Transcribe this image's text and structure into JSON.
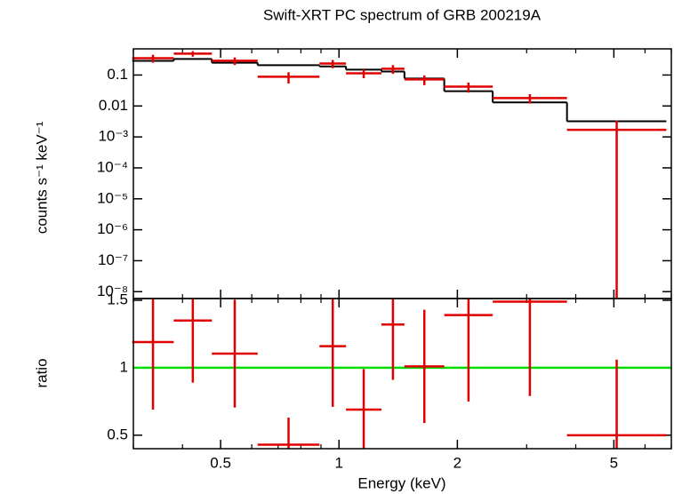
{
  "chart_data": [
    {
      "type": "errorbar",
      "title": "Swift-XRT PC spectrum of GRB 200219A",
      "ylabel": "counts s⁻¹ keV⁻¹",
      "xlog": true,
      "ylog": true,
      "xlim": [
        0.3,
        7
      ],
      "ylim": [
        6e-09,
        0.7
      ],
      "yticks": [
        0.1,
        0.01,
        {
          "value": 0.001,
          "label": "10⁻³"
        },
        {
          "value": 0.0001,
          "label": "10⁻⁴"
        },
        {
          "value": 1e-05,
          "label": "10⁻⁵"
        },
        {
          "value": 1e-06,
          "label": "10⁻⁶"
        },
        {
          "value": 1e-07,
          "label": "10⁻⁷"
        },
        {
          "value": 1e-08,
          "label": "10⁻⁸"
        }
      ],
      "bins": [
        0.298,
        0.38,
        0.475,
        0.621,
        0.892,
        1.042,
        1.282,
        1.467,
        1.852,
        2.46,
        3.8,
        6.8
      ],
      "data": {
        "color": "#e00000",
        "values": [
          0.35,
          0.49,
          0.29,
          0.088,
          0.236,
          0.114,
          0.159,
          0.072,
          0.042,
          0.018,
          0.0017
        ],
        "errors": [
          0.1,
          0.1,
          0.08,
          0.035,
          0.07,
          0.035,
          0.05,
          0.025,
          0.015,
          0.006,
          0.0017
        ]
      },
      "model": {
        "color": "#000000",
        "values": [
          0.287,
          0.33,
          0.25,
          0.207,
          0.19,
          0.149,
          0.13,
          0.077,
          0.03,
          0.013,
          0.0032
        ]
      }
    },
    {
      "type": "errorbar",
      "xlabel": "Energy (keV)",
      "ylabel": "ratio",
      "xlog": true,
      "ylog": false,
      "xlim": [
        0.3,
        7
      ],
      "ylim": [
        0.4,
        1.513
      ],
      "yticks": [
        0.5,
        1,
        1.5
      ],
      "xticks": [
        0.5,
        1,
        2,
        5
      ],
      "xminor_ticks": [
        0.3,
        0.4,
        0.6,
        0.7,
        0.8,
        0.9,
        3,
        4,
        6,
        7
      ],
      "bins": [
        0.298,
        0.38,
        0.475,
        0.621,
        0.892,
        1.042,
        1.282,
        1.467,
        1.852,
        2.46,
        3.8,
        6.8
      ],
      "data": {
        "color": "#e00000",
        "values": [
          1.19,
          1.35,
          1.105,
          0.43,
          1.16,
          0.69,
          1.32,
          1.01,
          1.39,
          1.49,
          0.5
        ],
        "errors": [
          0.5,
          0.46,
          0.4,
          0.2,
          0.45,
          0.3,
          0.41,
          0.42,
          0.64,
          0.7,
          0.56
        ]
      },
      "reference": 1,
      "reference_color": "#00e000"
    }
  ]
}
